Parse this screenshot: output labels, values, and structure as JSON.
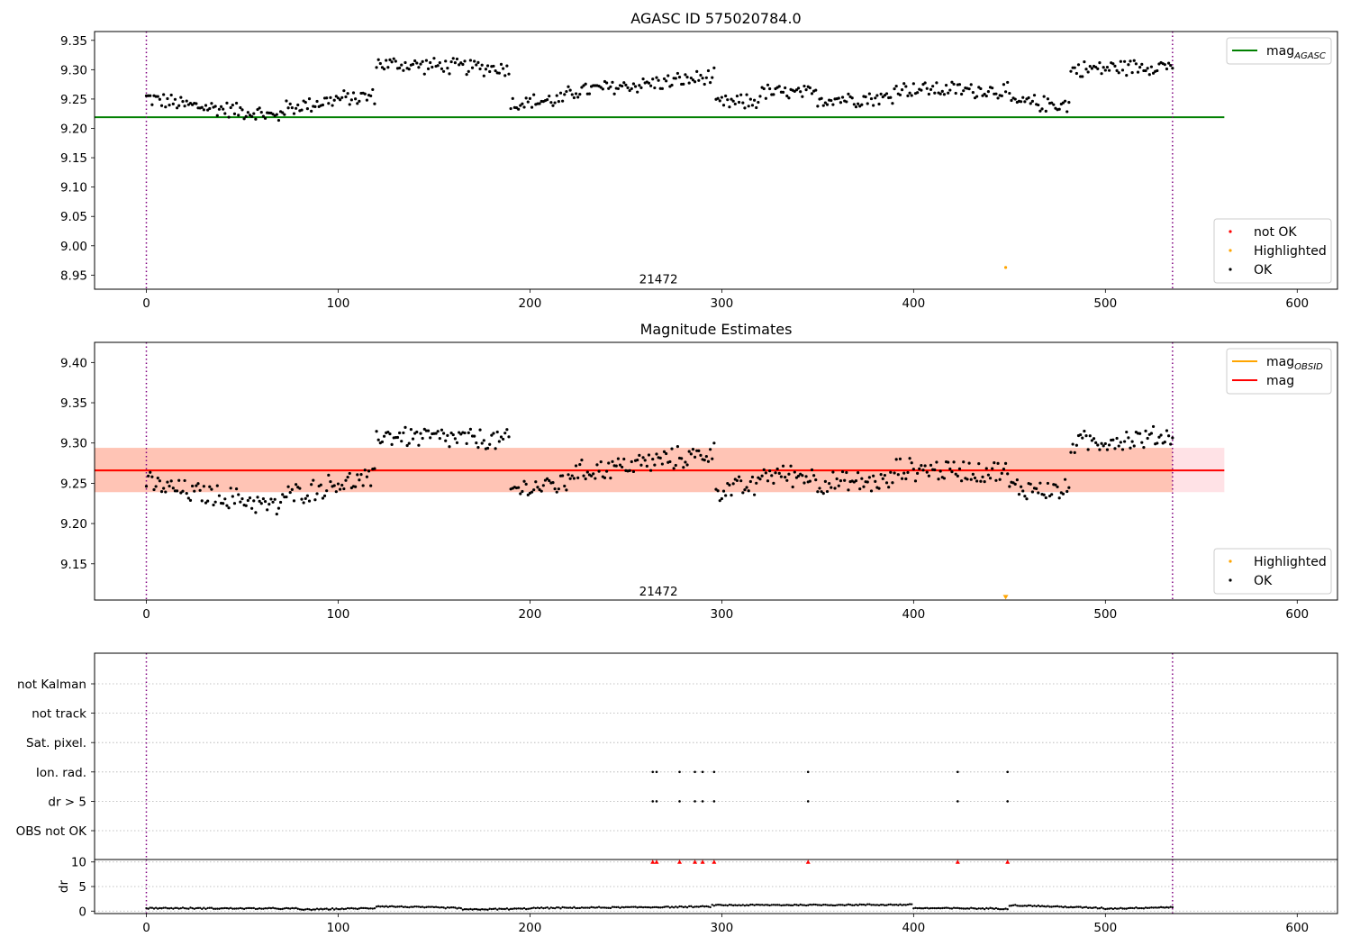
{
  "chart_data": [
    {
      "type": "scatter",
      "title": "AGASC ID 575020784.0",
      "xlim": [
        -27,
        621
      ],
      "ylim": [
        8.926,
        9.365
      ],
      "xticks": [
        0,
        100,
        200,
        300,
        400,
        500,
        600
      ],
      "yticks": [
        8.95,
        9.0,
        9.05,
        9.1,
        9.15,
        9.2,
        9.25,
        9.3,
        9.35
      ],
      "ytick_format": 2,
      "vlines": [
        0,
        535
      ],
      "obsid_label": {
        "text": "21472",
        "x": 267,
        "y": 8.942
      },
      "hlines": [
        {
          "name": "mag_AGASC",
          "value": 9.219,
          "x": [
            -27,
            562
          ],
          "color": "#008000"
        }
      ],
      "legends": [
        {
          "position": "top-right",
          "entries": [
            {
              "label": "mag",
              "sub": "AGASC",
              "kind": "line",
              "color": "#008000"
            }
          ]
        },
        {
          "position": "bottom-right",
          "entries": [
            {
              "label": "not OK",
              "kind": "dot",
              "color": "#ff0000"
            },
            {
              "label": "Highlighted",
              "kind": "dot",
              "color": "#ffa500"
            },
            {
              "label": "OK",
              "kind": "dot",
              "color": "#000000"
            }
          ]
        }
      ],
      "series": [
        {
          "name": "OK",
          "color": "#000000",
          "noise": 0.016,
          "segments": [
            {
              "x": [
                0,
                20
              ],
              "y": [
                9.252,
                9.24
              ]
            },
            {
              "x": [
                20,
                55
              ],
              "y": [
                9.24,
                9.228
              ]
            },
            {
              "x": [
                55,
                70
              ],
              "y": [
                9.228,
                9.218
              ]
            },
            {
              "x": [
                70,
                100
              ],
              "y": [
                9.232,
                9.25
              ]
            },
            {
              "x": [
                100,
                120
              ],
              "y": [
                9.25,
                9.255
              ]
            },
            {
              "x": [
                120,
                190
              ],
              "y": [
                9.31,
                9.302
              ]
            },
            {
              "x": [
                190,
                220
              ],
              "y": [
                9.242,
                9.25
              ]
            },
            {
              "x": [
                220,
                297
              ],
              "y": [
                9.262,
                9.288
              ]
            },
            {
              "x": [
                297,
                320
              ],
              "y": [
                9.242,
                9.246
              ]
            },
            {
              "x": [
                320,
                350
              ],
              "y": [
                9.262,
                9.258
              ]
            },
            {
              "x": [
                350,
                390
              ],
              "y": [
                9.25,
                9.252
              ]
            },
            {
              "x": [
                390,
                450
              ],
              "y": [
                9.268,
                9.264
              ]
            },
            {
              "x": [
                450,
                482
              ],
              "y": [
                9.245,
                9.24
              ]
            },
            {
              "x": [
                482,
                535
              ],
              "y": [
                9.3,
                9.308
              ]
            }
          ]
        },
        {
          "name": "Highlighted",
          "color": "#ffa500",
          "points": [
            [
              448,
              8.963
            ]
          ]
        }
      ]
    },
    {
      "type": "scatter",
      "title": "Magnitude Estimates",
      "xlim": [
        -27,
        621
      ],
      "ylim": [
        9.105,
        9.425
      ],
      "xticks": [
        0,
        100,
        200,
        300,
        400,
        500,
        600
      ],
      "yticks": [
        9.15,
        9.2,
        9.25,
        9.3,
        9.35,
        9.4
      ],
      "ytick_format": 2,
      "vlines": [
        0,
        535
      ],
      "obsid_label": {
        "text": "21472",
        "x": 267,
        "y": 9.115
      },
      "bands": [
        {
          "y": [
            9.239,
            9.294
          ],
          "x": [
            -27,
            562
          ],
          "color": "#ffb6c1",
          "opacity": 0.4
        },
        {
          "y": [
            9.239,
            9.294
          ],
          "x": [
            -27,
            535
          ],
          "color": "#ffa07a",
          "opacity": 0.45
        }
      ],
      "hlines": [
        {
          "name": "mag_OBSID",
          "value": 9.266,
          "x": [
            -27,
            535
          ],
          "color": "#ffa500"
        },
        {
          "name": "mag",
          "value": 9.266,
          "x": [
            -27,
            562
          ],
          "color": "#ff0000"
        }
      ],
      "legends": [
        {
          "position": "top-right",
          "entries": [
            {
              "label": "mag",
              "sub": "OBSID",
              "kind": "line",
              "color": "#ffa500"
            },
            {
              "label": "mag",
              "kind": "line",
              "color": "#ff0000"
            }
          ]
        },
        {
          "position": "bottom-right",
          "entries": [
            {
              "label": "Highlighted",
              "kind": "dot",
              "color": "#ffa500"
            },
            {
              "label": "OK",
              "kind": "dot",
              "color": "#000000"
            }
          ]
        }
      ],
      "series": [
        {
          "name": "OK",
          "color": "#000000",
          "noise": 0.016,
          "segments": [
            {
              "x": [
                0,
                20
              ],
              "y": [
                9.25,
                9.24
              ]
            },
            {
              "x": [
                20,
                55
              ],
              "y": [
                9.24,
                9.228
              ]
            },
            {
              "x": [
                55,
                70
              ],
              "y": [
                9.228,
                9.218
              ]
            },
            {
              "x": [
                70,
                100
              ],
              "y": [
                9.232,
                9.25
              ]
            },
            {
              "x": [
                100,
                120
              ],
              "y": [
                9.25,
                9.255
              ]
            },
            {
              "x": [
                120,
                190
              ],
              "y": [
                9.31,
                9.302
              ]
            },
            {
              "x": [
                190,
                220
              ],
              "y": [
                9.242,
                9.25
              ]
            },
            {
              "x": [
                220,
                297
              ],
              "y": [
                9.262,
                9.288
              ]
            },
            {
              "x": [
                297,
                320
              ],
              "y": [
                9.242,
                9.246
              ]
            },
            {
              "x": [
                320,
                350
              ],
              "y": [
                9.262,
                9.258
              ]
            },
            {
              "x": [
                350,
                390
              ],
              "y": [
                9.25,
                9.252
              ]
            },
            {
              "x": [
                390,
                450
              ],
              "y": [
                9.268,
                9.264
              ]
            },
            {
              "x": [
                450,
                482
              ],
              "y": [
                9.245,
                9.24
              ]
            },
            {
              "x": [
                482,
                535
              ],
              "y": [
                9.3,
                9.308
              ]
            }
          ]
        },
        {
          "name": "Highlighted",
          "color": "#ffa500",
          "marker": "triangle-down",
          "points": [
            [
              448,
              9.108
            ]
          ]
        }
      ]
    },
    {
      "type": "scatter",
      "xlim": [
        -27,
        621
      ],
      "xticks": [
        0,
        100,
        200,
        300,
        400,
        500,
        600
      ],
      "vlines": [
        0,
        535
      ],
      "flag_labels": [
        "not Kalman",
        "not track",
        "Sat. pixel.",
        "Ion. rad.",
        "dr > 5",
        "OBS not OK"
      ],
      "flags": {
        "Ion. rad.": [
          264,
          266,
          278,
          286,
          290,
          296,
          345,
          423,
          449
        ],
        "dr > 5": [
          264,
          266,
          278,
          286,
          290,
          296,
          345,
          423,
          449
        ]
      },
      "dr": {
        "ylabel": "dr",
        "ylim": [
          -0.5,
          10.5
        ],
        "yticks": [
          0,
          5,
          10
        ],
        "clipped": {
          "x": [
            264,
            266,
            278,
            286,
            290,
            296,
            345,
            423,
            449
          ],
          "y": 10,
          "color": "#ff0000"
        },
        "segments": [
          {
            "x": [
              0,
              80
            ],
            "y": [
              0.6,
              0.5
            ]
          },
          {
            "x": [
              80,
              120
            ],
            "y": [
              0.3,
              0.6
            ]
          },
          {
            "x": [
              120,
              165
            ],
            "y": [
              1.0,
              0.6
            ]
          },
          {
            "x": [
              165,
              200
            ],
            "y": [
              0.3,
              0.5
            ]
          },
          {
            "x": [
              200,
              295
            ],
            "y": [
              0.6,
              0.9
            ]
          },
          {
            "x": [
              295,
              400
            ],
            "y": [
              1.2,
              1.3
            ]
          },
          {
            "x": [
              400,
              450
            ],
            "y": [
              0.6,
              0.5
            ]
          },
          {
            "x": [
              450,
              500
            ],
            "y": [
              1.2,
              0.6
            ]
          },
          {
            "x": [
              500,
              535
            ],
            "y": [
              0.5,
              0.8
            ]
          }
        ]
      }
    }
  ]
}
